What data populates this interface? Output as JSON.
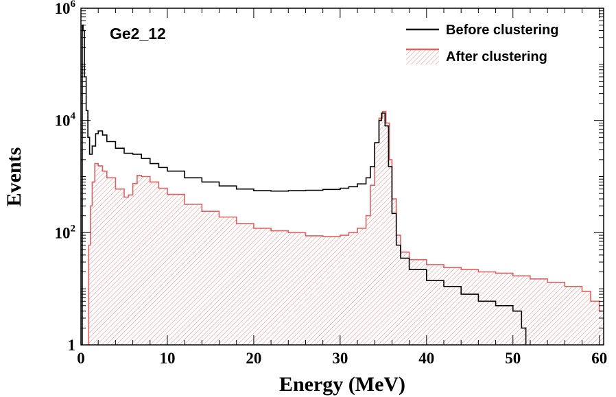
{
  "chart_data": {
    "type": "histogram",
    "panel_label": "Ge2_12",
    "xlabel": "Energy (MeV)",
    "ylabel": "Events",
    "xlim": [
      0,
      60.5
    ],
    "ylim": [
      1,
      1000000
    ],
    "yscale": "log",
    "x_ticks": [
      0,
      10,
      20,
      30,
      40,
      50,
      60
    ],
    "y_major_ticks": [
      {
        "value": 1,
        "base": "1",
        "exp": ""
      },
      {
        "value": 100,
        "base": "10",
        "exp": "2"
      },
      {
        "value": 10000,
        "base": "10",
        "exp": "4"
      },
      {
        "value": 1000000,
        "base": "10",
        "exp": "6"
      }
    ],
    "legend_location": "top-right",
    "series": [
      {
        "name": "Before clustering",
        "style": "line",
        "color": "#000000",
        "points": [
          [
            0.05,
            1
          ],
          [
            0.15,
            500000
          ],
          [
            0.25,
            400000
          ],
          [
            0.4,
            60000
          ],
          [
            0.6,
            15000
          ],
          [
            0.8,
            5000
          ],
          [
            1.0,
            2500
          ],
          [
            1.3,
            3500
          ],
          [
            1.7,
            5800
          ],
          [
            2.0,
            6500
          ],
          [
            2.5,
            5500
          ],
          [
            3,
            4200
          ],
          [
            4,
            3200
          ],
          [
            5,
            2600
          ],
          [
            6,
            2500
          ],
          [
            7,
            2100
          ],
          [
            8,
            1700
          ],
          [
            9,
            1450
          ],
          [
            10,
            1250
          ],
          [
            12,
            950
          ],
          [
            14,
            800
          ],
          [
            16,
            680
          ],
          [
            18,
            600
          ],
          [
            20,
            560
          ],
          [
            22,
            550
          ],
          [
            24,
            560
          ],
          [
            26,
            570
          ],
          [
            28,
            590
          ],
          [
            30,
            620
          ],
          [
            31,
            660
          ],
          [
            32,
            740
          ],
          [
            33,
            950
          ],
          [
            33.5,
            1500
          ],
          [
            34,
            4000
          ],
          [
            34.5,
            10000
          ],
          [
            34.8,
            13500
          ],
          [
            35.2,
            8000
          ],
          [
            35.6,
            1500
          ],
          [
            36,
            220
          ],
          [
            36.5,
            60
          ],
          [
            37,
            35
          ],
          [
            38,
            22
          ],
          [
            40,
            14
          ],
          [
            42,
            11
          ],
          [
            44,
            8
          ],
          [
            46,
            6
          ],
          [
            48,
            5
          ],
          [
            50,
            4
          ],
          [
            51,
            2
          ],
          [
            51.5,
            1
          ]
        ]
      },
      {
        "name": "After clustering",
        "style": "hatched-fill",
        "color": "#e06060",
        "fill_color": "#e89a9a",
        "points": [
          [
            0.8,
            1
          ],
          [
            0.9,
            60
          ],
          [
            1.1,
            300
          ],
          [
            1.3,
            800
          ],
          [
            1.6,
            1700
          ],
          [
            2.0,
            1550
          ],
          [
            2.5,
            1250
          ],
          [
            3,
            950
          ],
          [
            4,
            600
          ],
          [
            5,
            430
          ],
          [
            5.5,
            470
          ],
          [
            6,
            750
          ],
          [
            6.5,
            1050
          ],
          [
            7,
            1000
          ],
          [
            8,
            800
          ],
          [
            9,
            620
          ],
          [
            10,
            480
          ],
          [
            12,
            320
          ],
          [
            14,
            240
          ],
          [
            16,
            190
          ],
          [
            18,
            145
          ],
          [
            20,
            120
          ],
          [
            22,
            108
          ],
          [
            24,
            100
          ],
          [
            26,
            88
          ],
          [
            28,
            85
          ],
          [
            30,
            90
          ],
          [
            31,
            100
          ],
          [
            32,
            120
          ],
          [
            33,
            200
          ],
          [
            33.5,
            700
          ],
          [
            34,
            4000
          ],
          [
            34.5,
            11000
          ],
          [
            34.9,
            14500
          ],
          [
            35.3,
            9000
          ],
          [
            35.7,
            2000
          ],
          [
            36,
            400
          ],
          [
            36.5,
            90
          ],
          [
            37,
            45
          ],
          [
            38,
            33
          ],
          [
            40,
            27
          ],
          [
            42,
            24
          ],
          [
            44,
            22
          ],
          [
            46,
            20
          ],
          [
            48,
            19
          ],
          [
            50,
            17
          ],
          [
            52,
            15
          ],
          [
            54,
            13
          ],
          [
            56,
            11
          ],
          [
            58,
            9
          ],
          [
            59,
            6
          ],
          [
            60,
            4
          ],
          [
            60.5,
            4
          ]
        ]
      }
    ]
  }
}
